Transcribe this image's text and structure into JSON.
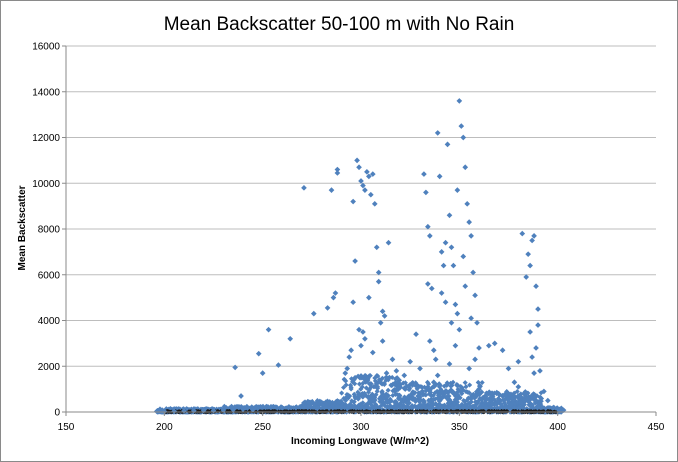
{
  "chart_data": {
    "type": "scatter",
    "title": "Mean Backscatter 50-100 m with No Rain",
    "xlabel": "Incoming Longwave (W/m^2)",
    "ylabel": "Mean Backscatter",
    "xlim": [
      150,
      450
    ],
    "ylim": [
      0,
      16000
    ],
    "xticks": [
      "150",
      "200",
      "250",
      "300",
      "350",
      "400",
      "450"
    ],
    "yticks": [
      "0",
      "2000",
      "4000",
      "6000",
      "8000",
      "10000",
      "12000",
      "14000",
      "16000"
    ],
    "grid": "horizontal major gridlines",
    "legend": "none",
    "marker_color": "#4f81bd",
    "series": [
      {
        "points": [
          [
            200,
            30
          ],
          [
            205,
            40
          ],
          [
            210,
            50
          ],
          [
            215,
            60
          ],
          [
            220,
            70
          ],
          [
            225,
            60
          ],
          [
            230,
            80
          ],
          [
            235,
            100
          ],
          [
            240,
            120
          ],
          [
            245,
            100
          ],
          [
            239,
            700
          ],
          [
            236,
            1950
          ],
          [
            248,
            2550
          ],
          [
            253,
            3600
          ],
          [
            250,
            1700
          ],
          [
            258,
            2050
          ],
          [
            264,
            3200
          ],
          [
            271,
            9800
          ],
          [
            276,
            4300
          ],
          [
            283,
            4550
          ],
          [
            286,
            5000
          ],
          [
            287,
            5200
          ],
          [
            288,
            10600
          ],
          [
            288,
            10450
          ],
          [
            285,
            9700
          ],
          [
            292,
            1700
          ],
          [
            293,
            1900
          ],
          [
            294,
            2400
          ],
          [
            295,
            2700
          ],
          [
            296,
            9200
          ],
          [
            297,
            6600
          ],
          [
            298,
            11000
          ],
          [
            299,
            10700
          ],
          [
            300,
            10100
          ],
          [
            301,
            9900
          ],
          [
            302,
            9700
          ],
          [
            303,
            10500
          ],
          [
            304,
            10300
          ],
          [
            305,
            9500
          ],
          [
            306,
            10400
          ],
          [
            307,
            9100
          ],
          [
            308,
            7200
          ],
          [
            309,
            5700
          ],
          [
            310,
            3900
          ],
          [
            311,
            3100
          ],
          [
            312,
            4200
          ],
          [
            313,
            1700
          ],
          [
            314,
            7400
          ],
          [
            316,
            2300
          ],
          [
            318,
            1800
          ],
          [
            296,
            4800
          ],
          [
            299,
            3600
          ],
          [
            302,
            3200
          ],
          [
            304,
            5000
          ],
          [
            306,
            2600
          ],
          [
            300,
            2900
          ],
          [
            297,
            1500
          ],
          [
            301,
            3500
          ],
          [
            309,
            6100
          ],
          [
            311,
            4400
          ],
          [
            320,
            1200
          ],
          [
            322,
            1600
          ],
          [
            325,
            2200
          ],
          [
            328,
            3400
          ],
          [
            330,
            1900
          ],
          [
            332,
            10400
          ],
          [
            333,
            9600
          ],
          [
            334,
            8100
          ],
          [
            335,
            7700
          ],
          [
            336,
            5400
          ],
          [
            337,
            2700
          ],
          [
            338,
            2300
          ],
          [
            339,
            12200
          ],
          [
            340,
            10300
          ],
          [
            341,
            7000
          ],
          [
            342,
            6400
          ],
          [
            343,
            7400
          ],
          [
            344,
            11700
          ],
          [
            345,
            8600
          ],
          [
            346,
            7200
          ],
          [
            347,
            6400
          ],
          [
            348,
            4700
          ],
          [
            349,
            9700
          ],
          [
            350,
            13600
          ],
          [
            351,
            12500
          ],
          [
            352,
            12000
          ],
          [
            353,
            10700
          ],
          [
            354,
            9100
          ],
          [
            355,
            8300
          ],
          [
            356,
            7700
          ],
          [
            357,
            6100
          ],
          [
            358,
            5100
          ],
          [
            359,
            3900
          ],
          [
            360,
            2800
          ],
          [
            334,
            5600
          ],
          [
            341,
            5200
          ],
          [
            346,
            3900
          ],
          [
            349,
            4300
          ],
          [
            353,
            5500
          ],
          [
            348,
            2900
          ],
          [
            352,
            6800
          ],
          [
            356,
            4100
          ],
          [
            335,
            3100
          ],
          [
            343,
            4800
          ],
          [
            339,
            1600
          ],
          [
            345,
            2100
          ],
          [
            350,
            3600
          ],
          [
            355,
            1900
          ],
          [
            358,
            2300
          ],
          [
            337,
            1300
          ],
          [
            365,
            2900
          ],
          [
            368,
            3000
          ],
          [
            372,
            2700
          ],
          [
            375,
            1900
          ],
          [
            378,
            1300
          ],
          [
            380,
            2200
          ],
          [
            382,
            7800
          ],
          [
            384,
            5900
          ],
          [
            385,
            6900
          ],
          [
            386,
            6400
          ],
          [
            387,
            7500
          ],
          [
            388,
            7700
          ],
          [
            389,
            5500
          ],
          [
            390,
            4500
          ],
          [
            390,
            3800
          ],
          [
            389,
            2800
          ],
          [
            388,
            1700
          ],
          [
            386,
            3500
          ],
          [
            387,
            2400
          ],
          [
            391,
            1800
          ],
          [
            393,
            900
          ],
          [
            395,
            500
          ],
          [
            398,
            200
          ],
          [
            400,
            150
          ],
          [
            403,
            80
          ],
          [
            360,
            1000
          ],
          [
            370,
            800
          ],
          [
            380,
            1100
          ],
          [
            385,
            600
          ],
          [
            330,
            800
          ]
        ]
      }
    ]
  }
}
